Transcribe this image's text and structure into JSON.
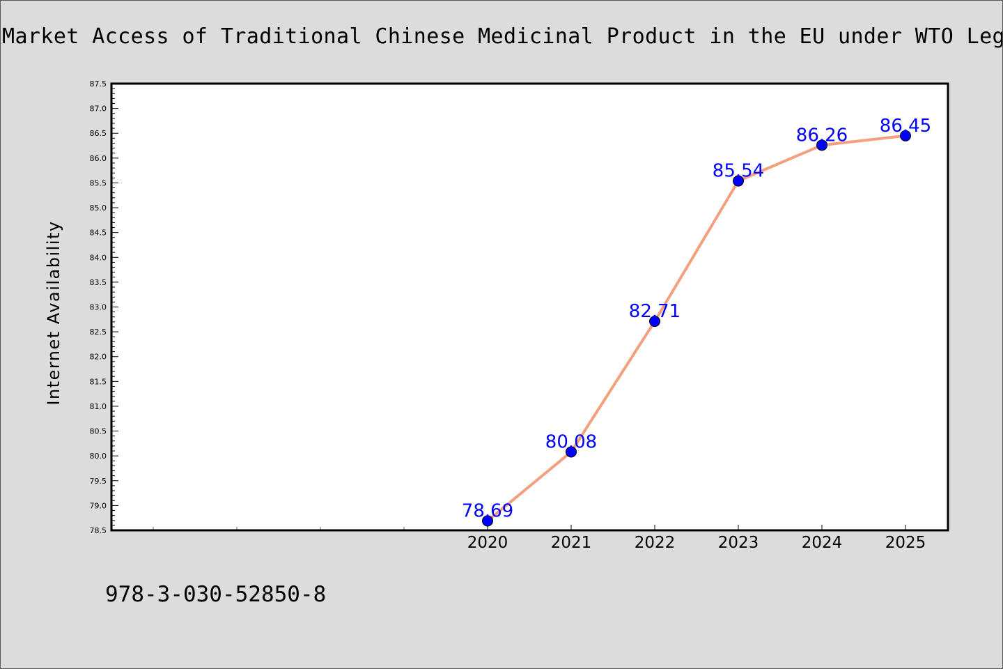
{
  "chart_data": {
    "type": "line",
    "title": "Market Access of Traditional Chinese Medicinal Product in the EU under WTO Legal",
    "ylabel": "Internet Availability",
    "xlabel": "",
    "x": [
      "2020",
      "2021",
      "2022",
      "2023",
      "2024",
      "2025"
    ],
    "series": [
      {
        "values": [
          78.69,
          80.08,
          82.71,
          85.54,
          86.26,
          86.45
        ],
        "labels": [
          "78.69",
          "80.08",
          "82.71",
          "85.54",
          "86.26",
          "86.45"
        ],
        "line_color": "#f4a07e",
        "marker_color": "#0000ff"
      }
    ],
    "ylim": [
      78.5,
      87.5
    ],
    "yticks": [
      "78.5",
      "79.0",
      "79.5",
      "80.0",
      "80.5",
      "81.0",
      "81.5",
      "82.0",
      "82.5",
      "83.0",
      "83.5",
      "84.0",
      "84.5",
      "85.0",
      "85.5",
      "86.0",
      "86.5",
      "87.0",
      "87.5"
    ],
    "grid": false,
    "legend": "none",
    "background_color": "#dcdcdc",
    "plot_color": "#ffffff",
    "label_color": "#0000ff"
  },
  "footer": {
    "isbn": "978-3-030-52850-8"
  }
}
